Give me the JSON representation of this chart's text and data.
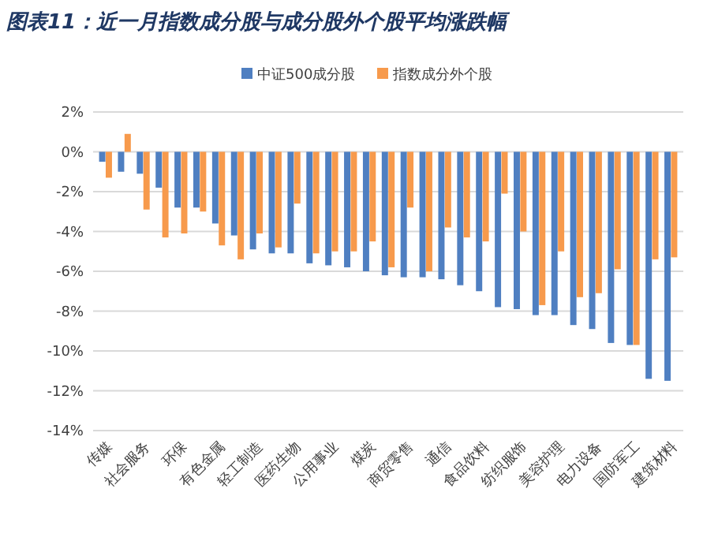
{
  "chart_data": {
    "type": "bar",
    "title": "图表11：近一月指数成分股与成分股外个股平均涨跌幅",
    "categories": [
      "传媒",
      null,
      "社会服务",
      null,
      "环保",
      null,
      "有色金属",
      null,
      "轻工制造",
      null,
      "医药生物",
      null,
      "公用事业",
      null,
      "煤炭",
      null,
      "商贸零售",
      null,
      "通信",
      null,
      "食品饮料",
      null,
      "纺织服饰",
      null,
      "美容护理",
      null,
      "电力设备",
      null,
      "国防军工",
      null,
      "建筑材料"
    ],
    "series": [
      {
        "name": "中证500成分股",
        "color": "#4f7fc1",
        "values": [
          -0.5,
          -1.0,
          -1.1,
          -1.8,
          -2.8,
          -2.8,
          -3.6,
          -4.2,
          -4.9,
          -5.1,
          -5.1,
          -5.6,
          -5.7,
          -5.8,
          -6.0,
          -6.2,
          -6.3,
          -6.3,
          -6.4,
          -6.7,
          -7.0,
          -7.8,
          -7.9,
          -8.2,
          -8.2,
          -8.7,
          -8.9,
          -9.6,
          -9.7,
          -11.4,
          -11.5
        ]
      },
      {
        "name": "指数成分外个股",
        "color": "#f79a4c",
        "values": [
          -1.3,
          0.9,
          -2.9,
          -4.3,
          -4.1,
          -3.0,
          -4.7,
          -5.4,
          -4.1,
          -4.8,
          -2.6,
          -5.1,
          -5.0,
          -5.0,
          -4.5,
          -5.8,
          -2.8,
          -6.0,
          -3.8,
          -4.3,
          -4.5,
          -2.1,
          -4.0,
          -7.7,
          -5.0,
          -7.3,
          -7.1,
          -5.9,
          -9.7,
          -5.4,
          -5.3
        ]
      }
    ],
    "ylim": [
      -14,
      2
    ],
    "yticks": [
      {
        "value": 2,
        "label": "2%"
      },
      {
        "value": 0,
        "label": "0%"
      },
      {
        "value": -2,
        "label": "-2%"
      },
      {
        "value": -4,
        "label": "-4%"
      },
      {
        "value": -6,
        "label": "-6%"
      },
      {
        "value": -8,
        "label": "-8%"
      },
      {
        "value": -10,
        "label": "-10%"
      },
      {
        "value": -12,
        "label": "-12%"
      },
      {
        "value": -14,
        "label": "-14%"
      }
    ],
    "grid": "y",
    "legend": "top right"
  }
}
